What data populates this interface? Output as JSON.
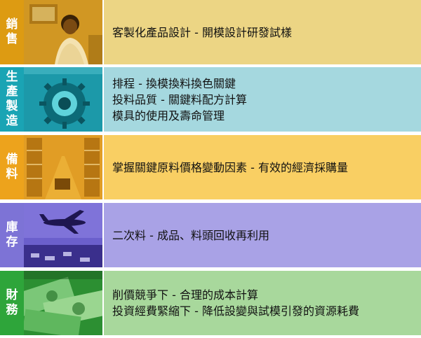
{
  "rows": [
    {
      "label": [
        "銷",
        "售"
      ],
      "lines": [
        "客製化產品設計 - 開模設計研發試樣"
      ],
      "colors": {
        "label": "#dd9b12",
        "photo": "#c98a14",
        "body": "#ecd584"
      }
    },
    {
      "label": [
        "生",
        "產",
        "製",
        "造"
      ],
      "lines": [
        "排程 - 換模換料換色關鍵",
        "投料品質 - 關鍵料配方計算",
        "模具的使用及壽命管理"
      ],
      "colors": {
        "label": "#1aa4b4",
        "photo": "#128b9c",
        "body": "#a5d8df"
      }
    },
    {
      "label": [
        "備",
        "料"
      ],
      "lines": [
        "掌握關鍵原料價格變動因素 - 有效的經濟採購量"
      ],
      "colors": {
        "label": "#eda31c",
        "photo": "#d98f16",
        "body": "#f9cf63"
      }
    },
    {
      "label": [
        "庫",
        "存"
      ],
      "lines": [
        "二次料 - 成品、料頭回收再利用"
      ],
      "colors": {
        "label": "#7d73d6",
        "photo": "#6b5fcc",
        "body": "#a9a2e6"
      }
    },
    {
      "label": [
        "財",
        "務"
      ],
      "lines": [
        "削價競爭下 - 合理的成本計算",
        "投資經費緊縮下 - 降低設變與試模引發的資源耗費"
      ],
      "colors": {
        "label": "#2ea53a",
        "photo": "#2c8f32",
        "body": "#a8d89c"
      }
    }
  ]
}
